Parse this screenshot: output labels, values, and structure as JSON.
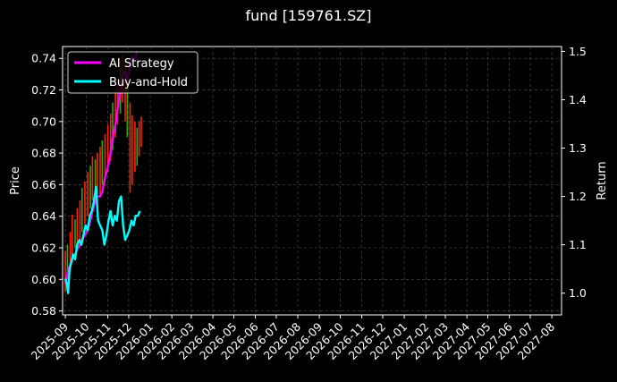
{
  "title": "fund [159761.SZ]",
  "chart_data": {
    "type": "line",
    "title": "fund [159761.SZ]",
    "ylabel": "Price",
    "y2label": "Return",
    "ylim": [
      0.5775,
      0.7475
    ],
    "y2lim": [
      0.955,
      1.51
    ],
    "yticks": [
      "0.58",
      "0.60",
      "0.62",
      "0.64",
      "0.66",
      "0.68",
      "0.70",
      "0.72",
      "0.74"
    ],
    "y2ticks": [
      "1.0",
      "1.1",
      "1.2",
      "1.3",
      "1.4",
      "1.5"
    ],
    "xticks": [
      "2025-09",
      "2025-10",
      "2025-11",
      "2025-12",
      "2026-01",
      "2026-02",
      "2026-03",
      "2026-04",
      "2026-05",
      "2026-06",
      "2026-07",
      "2026-08",
      "2026-09",
      "2026-10",
      "2026-11",
      "2026-12",
      "2027-01",
      "2027-02",
      "2027-03",
      "2027-04",
      "2027-05",
      "2027-06",
      "2027-07",
      "2027-08"
    ],
    "grid": true,
    "legend_placement": "top-left",
    "series": [
      {
        "name": "AI Strategy",
        "color": "#ff00ff",
        "axis": "right",
        "x": [
          "2025-09-01",
          "2025-09-04",
          "2025-09-08",
          "2025-09-11",
          "2025-09-15",
          "2025-09-18",
          "2025-09-22",
          "2025-09-25",
          "2025-09-29",
          "2025-10-03",
          "2025-10-07",
          "2025-10-10",
          "2025-10-14",
          "2025-10-17",
          "2025-10-21",
          "2025-10-24",
          "2025-10-28",
          "2025-11-01",
          "2025-11-05",
          "2025-11-08",
          "2025-11-12",
          "2025-11-15",
          "2025-11-19",
          "2025-11-22",
          "2025-11-26",
          "2025-11-29",
          "2025-12-03",
          "2025-12-06",
          "2025-12-10",
          "2025-12-13"
        ],
        "values": [
          1.02,
          1.04,
          1.06,
          1.07,
          1.08,
          1.09,
          1.1,
          1.11,
          1.12,
          1.13,
          1.15,
          1.17,
          1.19,
          1.2,
          1.2,
          1.21,
          1.24,
          1.26,
          1.29,
          1.32,
          1.35,
          1.38,
          1.42,
          1.45,
          1.46,
          1.44,
          1.47,
          1.49,
          1.48,
          1.5
        ]
      },
      {
        "name": "Buy-and-Hold",
        "color": "#00ffff",
        "axis": "right",
        "x": [
          "2025-09-01",
          "2025-09-03",
          "2025-09-05",
          "2025-09-07",
          "2025-09-09",
          "2025-09-12",
          "2025-09-15",
          "2025-09-18",
          "2025-09-21",
          "2025-09-24",
          "2025-09-27",
          "2025-09-30",
          "2025-10-03",
          "2025-10-06",
          "2025-10-09",
          "2025-10-12",
          "2025-10-15",
          "2025-10-18",
          "2025-10-21",
          "2025-10-24",
          "2025-10-27",
          "2025-10-30",
          "2025-11-02",
          "2025-11-05",
          "2025-11-08",
          "2025-11-11",
          "2025-11-14",
          "2025-11-17",
          "2025-11-20",
          "2025-11-23",
          "2025-11-26",
          "2025-11-29",
          "2025-12-02",
          "2025-12-05",
          "2025-12-08",
          "2025-12-11",
          "2025-12-14",
          "2025-12-17"
        ],
        "values": [
          1.03,
          1.02,
          1.0,
          1.05,
          1.06,
          1.08,
          1.07,
          1.1,
          1.11,
          1.1,
          1.12,
          1.14,
          1.13,
          1.16,
          1.17,
          1.19,
          1.22,
          1.15,
          1.14,
          1.13,
          1.1,
          1.12,
          1.15,
          1.17,
          1.14,
          1.16,
          1.15,
          1.19,
          1.2,
          1.14,
          1.11,
          1.12,
          1.13,
          1.15,
          1.14,
          1.16,
          1.16,
          1.17
        ]
      },
      {
        "name": "",
        "type": "price-bars",
        "axis": "left",
        "x": [
          "2025-09-01",
          "2025-09-04",
          "2025-09-08",
          "2025-09-11",
          "2025-09-15",
          "2025-09-18",
          "2025-09-22",
          "2025-09-25",
          "2025-09-29",
          "2025-10-03",
          "2025-10-07",
          "2025-10-10",
          "2025-10-14",
          "2025-10-17",
          "2025-10-21",
          "2025-10-24",
          "2025-10-28",
          "2025-11-01",
          "2025-11-05",
          "2025-11-08",
          "2025-11-12",
          "2025-11-15",
          "2025-11-19",
          "2025-11-22",
          "2025-11-26",
          "2025-11-29",
          "2025-12-03",
          "2025-12-06",
          "2025-12-10",
          "2025-12-13",
          "2025-12-16",
          "2025-12-19"
        ],
        "low": [
          0.592,
          0.6,
          0.605,
          0.612,
          0.62,
          0.618,
          0.625,
          0.63,
          0.635,
          0.64,
          0.645,
          0.65,
          0.648,
          0.655,
          0.652,
          0.66,
          0.664,
          0.668,
          0.675,
          0.682,
          0.69,
          0.698,
          0.705,
          0.712,
          0.7,
          0.69,
          0.655,
          0.66,
          0.668,
          0.672,
          0.678,
          0.684
        ],
        "high": [
          0.618,
          0.622,
          0.63,
          0.641,
          0.638,
          0.645,
          0.65,
          0.658,
          0.662,
          0.668,
          0.672,
          0.678,
          0.676,
          0.68,
          0.684,
          0.688,
          0.692,
          0.698,
          0.705,
          0.712,
          0.72,
          0.726,
          0.734,
          0.742,
          0.738,
          0.73,
          0.712,
          0.704,
          0.7,
          0.696,
          0.7,
          0.703
        ],
        "colors": [
          "#ff2200",
          "#33aa00",
          "#ff2200",
          "#ff2200",
          "#33aa00",
          "#ff2200",
          "#ff2200",
          "#33aa00",
          "#ff2200",
          "#ff2200",
          "#33aa00",
          "#ff2200",
          "#33aa00",
          "#ff2200",
          "#ff2200",
          "#33aa00",
          "#ff2200",
          "#ff2200",
          "#ff2200",
          "#33aa00",
          "#ff2200",
          "#ff2200",
          "#33aa00",
          "#ff2200",
          "#ff2200",
          "#33aa00",
          "#ff2200",
          "#ff2200",
          "#ff2200",
          "#33aa00",
          "#ff2200",
          "#ff2200"
        ]
      }
    ]
  }
}
